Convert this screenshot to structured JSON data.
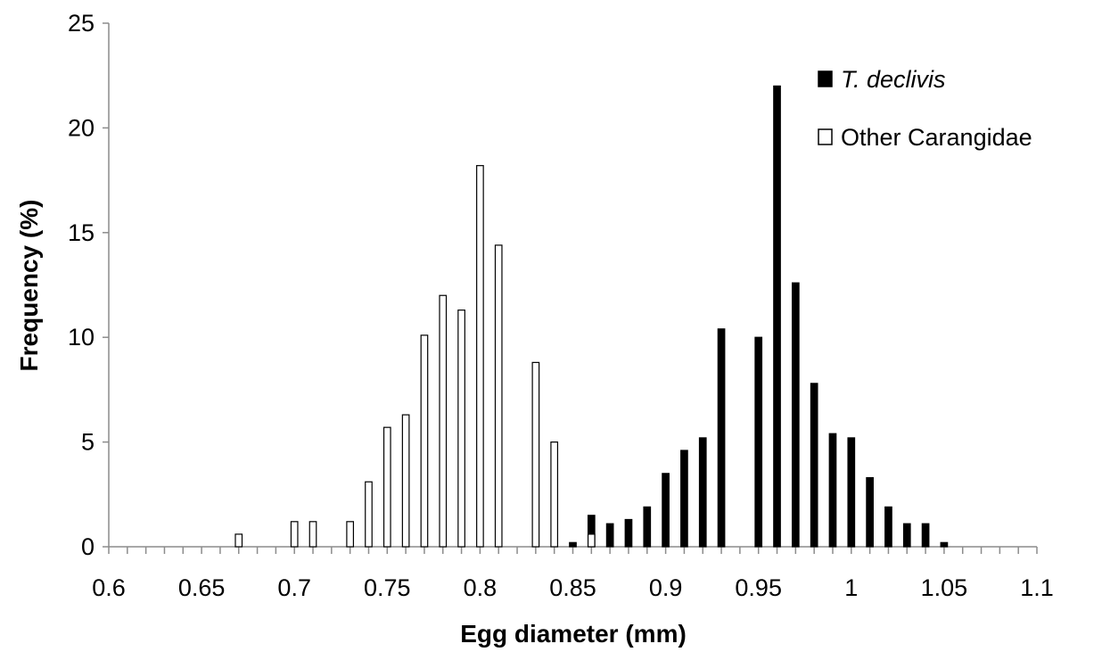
{
  "chart_data": {
    "type": "bar",
    "xlabel": "Egg diameter (mm)",
    "ylabel": "Frequency (%)",
    "xlim": [
      0.6,
      1.1
    ],
    "ylim": [
      0,
      25
    ],
    "x_ticks": [
      "0.6",
      "0.65",
      "0.7",
      "0.75",
      "0.8",
      "0.85",
      "0.9",
      "0.95",
      "1",
      "1.05",
      "1.1"
    ],
    "y_ticks": [
      "0",
      "5",
      "10",
      "15",
      "20",
      "25"
    ],
    "grid": false,
    "legend_position": "top-right",
    "series": [
      {
        "name": "T. declivis",
        "fill": "#000000",
        "points": [
          {
            "x": 0.85,
            "y": 0.2
          },
          {
            "x": 0.86,
            "y": 1.5
          },
          {
            "x": 0.87,
            "y": 1.1
          },
          {
            "x": 0.88,
            "y": 1.3
          },
          {
            "x": 0.89,
            "y": 1.9
          },
          {
            "x": 0.9,
            "y": 3.5
          },
          {
            "x": 0.91,
            "y": 4.6
          },
          {
            "x": 0.92,
            "y": 5.2
          },
          {
            "x": 0.93,
            "y": 10.4
          },
          {
            "x": 0.95,
            "y": 10.0
          },
          {
            "x": 0.96,
            "y": 22.0
          },
          {
            "x": 0.97,
            "y": 12.6
          },
          {
            "x": 0.98,
            "y": 7.8
          },
          {
            "x": 0.99,
            "y": 5.4
          },
          {
            "x": 1.0,
            "y": 5.2
          },
          {
            "x": 1.01,
            "y": 3.3
          },
          {
            "x": 1.02,
            "y": 1.9
          },
          {
            "x": 1.03,
            "y": 1.1
          },
          {
            "x": 1.04,
            "y": 1.1
          },
          {
            "x": 1.05,
            "y": 0.2
          }
        ]
      },
      {
        "name": "Other Carangidae",
        "fill": "#ffffff",
        "points": [
          {
            "x": 0.67,
            "y": 0.6
          },
          {
            "x": 0.7,
            "y": 1.2
          },
          {
            "x": 0.71,
            "y": 1.2
          },
          {
            "x": 0.73,
            "y": 1.2
          },
          {
            "x": 0.74,
            "y": 3.1
          },
          {
            "x": 0.75,
            "y": 5.7
          },
          {
            "x": 0.76,
            "y": 6.3
          },
          {
            "x": 0.77,
            "y": 10.1
          },
          {
            "x": 0.78,
            "y": 12.0
          },
          {
            "x": 0.79,
            "y": 11.3
          },
          {
            "x": 0.8,
            "y": 18.2
          },
          {
            "x": 0.81,
            "y": 14.4
          },
          {
            "x": 0.83,
            "y": 8.8
          },
          {
            "x": 0.84,
            "y": 5.0
          },
          {
            "x": 0.86,
            "y": 0.6
          }
        ]
      }
    ],
    "legend": [
      {
        "label_prefix": "T. declivis",
        "style": "italic",
        "fill": "#000000"
      },
      {
        "label_prefix": "Other Carangidae",
        "style": "normal",
        "fill": "#ffffff"
      }
    ]
  }
}
